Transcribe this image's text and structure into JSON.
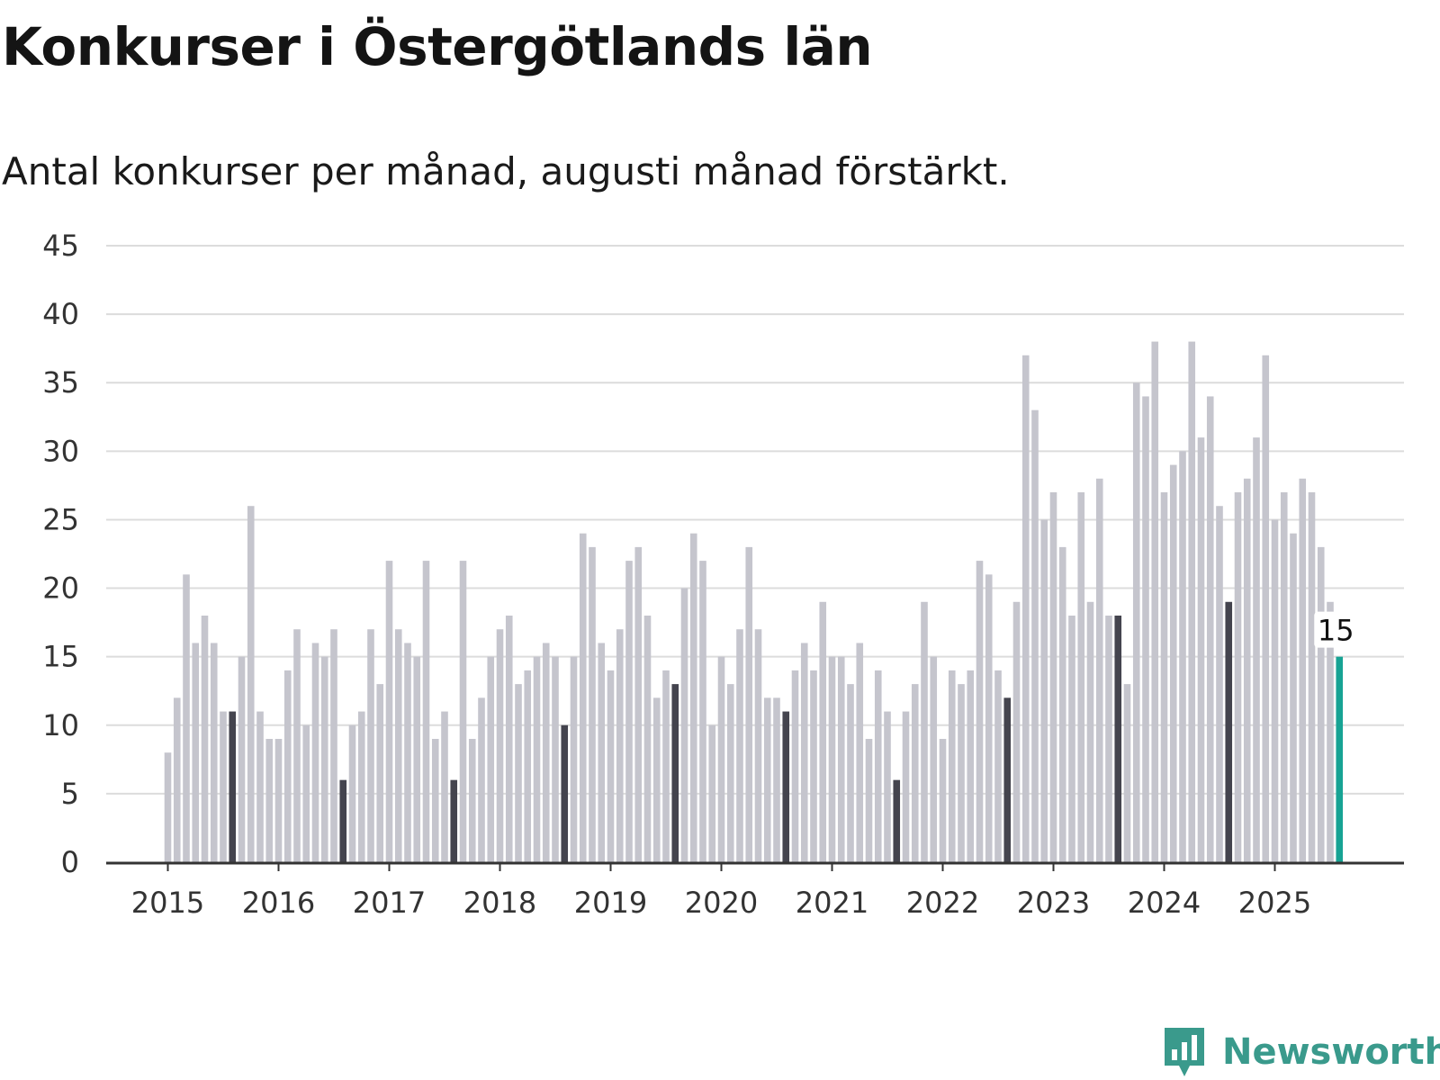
{
  "title": "Konkurser i Östergötlands län",
  "subtitle": "Antal konkurser per månad, augusti månad förstärkt.",
  "brand": {
    "name": "Newsworthy",
    "color": "#3a9a8c"
  },
  "colors": {
    "bar": "#c5c5cd",
    "highlight": "#44444e",
    "current": "#17a394",
    "grid": "#dcdcdc",
    "axis": "#333333"
  },
  "chart_data": {
    "type": "bar",
    "title": "Konkurser i Östergötlands län",
    "subtitle": "Antal konkurser per månad, augusti månad förstärkt.",
    "xlabel": "",
    "ylabel": "",
    "ylim": [
      0,
      45
    ],
    "yticks": [
      0,
      5,
      10,
      15,
      20,
      25,
      30,
      35,
      40,
      45
    ],
    "xticks": [
      "2015",
      "2016",
      "2017",
      "2018",
      "2019",
      "2020",
      "2021",
      "2022",
      "2023",
      "2024",
      "2025"
    ],
    "grid": true,
    "start_month": "2015-01",
    "highlight_month": "augusti",
    "values": [
      8,
      12,
      21,
      16,
      18,
      16,
      11,
      11,
      15,
      26,
      11,
      9,
      9,
      14,
      17,
      10,
      16,
      15,
      17,
      6,
      10,
      11,
      17,
      13,
      22,
      17,
      16,
      15,
      22,
      9,
      11,
      6,
      22,
      9,
      12,
      15,
      17,
      18,
      13,
      14,
      15,
      16,
      15,
      10,
      15,
      24,
      23,
      16,
      14,
      17,
      22,
      23,
      18,
      12,
      14,
      13,
      20,
      24,
      22,
      10,
      15,
      13,
      17,
      23,
      17,
      12,
      12,
      11,
      14,
      16,
      14,
      19,
      15,
      15,
      13,
      16,
      9,
      14,
      11,
      6,
      11,
      13,
      19,
      15,
      9,
      14,
      13,
      14,
      22,
      21,
      14,
      12,
      19,
      37,
      33,
      25,
      27,
      23,
      18,
      27,
      19,
      28,
      18,
      18,
      13,
      35,
      34,
      38,
      27,
      29,
      30,
      38,
      31,
      34,
      26,
      19,
      27,
      28,
      31,
      37,
      25,
      27,
      24,
      28,
      27,
      23,
      19,
      15
    ],
    "annotation": {
      "label": "15",
      "value": 15
    }
  }
}
